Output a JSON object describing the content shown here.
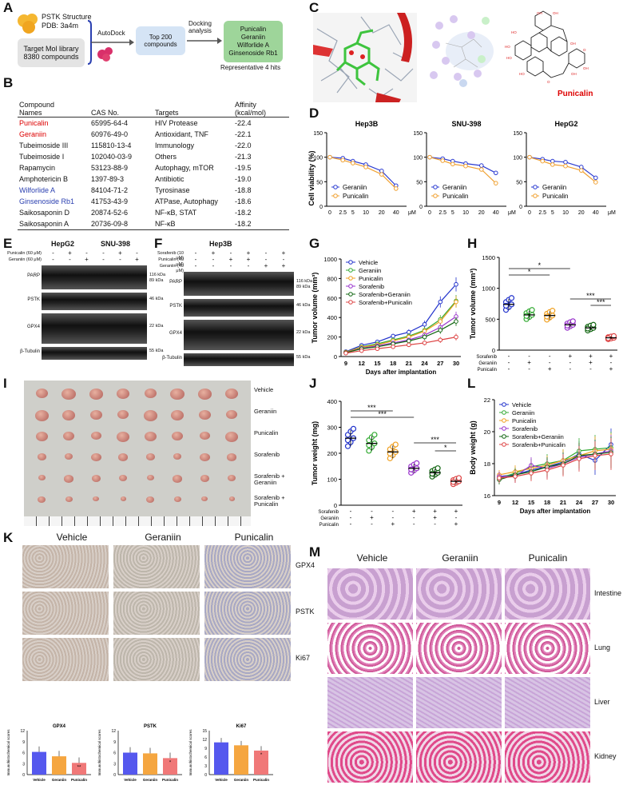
{
  "panels": {
    "A": "A",
    "B": "B",
    "C": "C",
    "D": "D",
    "E": "E",
    "F": "F",
    "G": "G",
    "H": "H",
    "I": "I",
    "J": "J",
    "K": "K",
    "L": "L",
    "M": "M"
  },
  "panelA": {
    "pstk_line1": "PSTK Structure",
    "pstk_line2": "PDB: 3a4m",
    "lib_line1": "Target Mol library",
    "lib_line2": "8380 compounds",
    "autodock": "AutoDock",
    "top_line1": "Top 200",
    "top_line2": "compounds",
    "dock_line1": "Docking",
    "dock_line2": "analysis",
    "hits": [
      "Punicalin",
      "Geraniin",
      "Wilforlide A",
      "Ginsenoside Rb1"
    ],
    "rep": "Representative 4 hits"
  },
  "panelB": {
    "headers": {
      "name1": "Compound",
      "name2": "Names",
      "cas": "CAS No.",
      "targets": "Targets",
      "aff1": "Affinity",
      "aff2": "(kcal/mol)"
    },
    "rows": [
      {
        "name": "Punicalin",
        "cas": "65995-64-4",
        "targets": "HIV Protease",
        "aff": "-22.4",
        "style": "hl-red"
      },
      {
        "name": "Geraniin",
        "cas": "60976-49-0",
        "targets": "Antioxidant, TNF",
        "aff": "-22.1",
        "style": "hl-red"
      },
      {
        "name": "Tubeimoside III",
        "cas": "115810-13-4",
        "targets": "Immunology",
        "aff": "-22.0",
        "style": ""
      },
      {
        "name": "Tubeimoside I",
        "cas": "102040-03-9",
        "targets": "Others",
        "aff": "-21.3",
        "style": ""
      },
      {
        "name": "Rapamycin",
        "cas": "53123-88-9",
        "targets": "Autophagy, mTOR",
        "aff": "-19.5",
        "style": ""
      },
      {
        "name": "Amphotericin B",
        "cas": "1397-89-3",
        "targets": "Antibiotic",
        "aff": "-19.0",
        "style": ""
      },
      {
        "name": "Wilforlide A",
        "cas": "84104-71-2",
        "targets": "Tyrosinase",
        "aff": "-18.8",
        "style": "hl-blue"
      },
      {
        "name": "Ginsenoside Rb1",
        "cas": "41753-43-9",
        "targets": "ATPase, Autophagy",
        "aff": "-18.6",
        "style": "hl-blue"
      },
      {
        "name": "Saikosaponin D",
        "cas": "20874-52-6",
        "targets": "NF-κB, STAT",
        "aff": "-18.2",
        "style": ""
      },
      {
        "name": "Saikosaponin A",
        "cas": "20736-09-8",
        "targets": "NF-κB",
        "aff": "-18.2",
        "style": ""
      }
    ]
  },
  "panelC": {
    "label": "Punicalin"
  },
  "panelD": {
    "ylabel": "Cell viability (%)",
    "unit": "μM",
    "legend": [
      "Geraniin",
      "Punicalin"
    ],
    "colors": {
      "geraniin": "#2b3bd1",
      "punicalin": "#f0a030"
    }
  },
  "panelE": {
    "title1": "HepG2",
    "title2": "SNU-398",
    "cond": [
      "Punicalin (60 μM)",
      "Geraniin (60 μM)"
    ],
    "signs": [
      [
        "-",
        "+",
        "-",
        "-",
        "+",
        "-"
      ],
      [
        "-",
        "-",
        "+",
        "-",
        "-",
        "+"
      ]
    ],
    "proteins": [
      "PARP",
      "PSTK",
      "GPX4",
      "β-Tubulin"
    ],
    "sizes": [
      "116 kDa\n89 kDa",
      "46 kDa",
      "22 kDa",
      "55 kDa"
    ]
  },
  "panelF": {
    "title": "Hep3B",
    "cond": [
      "Sorafenib (10 μM)",
      "Punicalin (40 μM)",
      "Geraniin (40 μM)"
    ],
    "signs": [
      [
        "-",
        "+",
        "-",
        "+",
        "-",
        "+"
      ],
      [
        "-",
        "-",
        "+",
        "+",
        "-",
        "-"
      ],
      [
        "-",
        "-",
        "-",
        "-",
        "+",
        "+"
      ]
    ],
    "proteins": [
      "PARP",
      "PSTK",
      "GPX4",
      "β-Tubulin"
    ],
    "sizes": [
      "116 kDa\n89 kDa",
      "46 kDa",
      "22 kDa",
      "55 kDa"
    ]
  },
  "panelG": {
    "ylabel": "Tumor volume (mm³)",
    "xlabel": "Days after implantation",
    "legend": [
      "Vehicle",
      "Geraniin",
      "Punicalin",
      "Sorafenib",
      "Sorafenib+Geraniin",
      "Sorafenib+Punicalin"
    ]
  },
  "panelH": {
    "ylabel": "Tumor volume (mm³)",
    "rowlabels": [
      "Sorafenib",
      "Geraniin",
      "Punicalin"
    ]
  },
  "panelI": {
    "rows": [
      "Vehicle",
      "Geraniin",
      "Punicalin",
      "Sorafenib",
      "Sorafenib +\nGeraniin",
      "Sorafenib +\nPunicalin"
    ]
  },
  "panelJ": {
    "ylabel": "Tumor weight (mg)",
    "rowlabels": [
      "Sorafenib",
      "Geraniin",
      "Punicalin"
    ]
  },
  "panelL": {
    "ylabel": "Body weight (g)",
    "xlabel": "Days after implantation",
    "legend": [
      "Vehicle",
      "Geraniin",
      "Punicalin",
      "Sorafenib",
      "Sorafenib+Geraniin",
      "Sorafenib+Punicalin"
    ]
  },
  "panelK": {
    "cols": [
      "Vehicle",
      "Geraniin",
      "Punicalin"
    ],
    "rows": [
      "GPX4",
      "PSTK",
      "Ki67"
    ],
    "ylabel": "Immunohistochemical scores"
  },
  "panelM": {
    "cols": [
      "Vehicle",
      "Geraniin",
      "Punicalin"
    ],
    "rows": [
      "Intestine",
      "Lung",
      "Liver",
      "Kidney"
    ]
  },
  "colors": {
    "vehicle": "#2233cc",
    "geraniin": "#33aa33",
    "punicalin": "#f0a020",
    "sorafenib": "#9933cc",
    "sor_ger": "#116611",
    "sor_pun": "#dd4444"
  },
  "chart_data": [
    {
      "panel": "D",
      "title": "Hep3B",
      "type": "line",
      "x": [
        0,
        2.5,
        5,
        10,
        20,
        40
      ],
      "xticks": [
        "0",
        "2.5",
        "5",
        "10",
        "20",
        "40"
      ],
      "ylim": [
        0,
        150
      ],
      "yticks": [
        0,
        50,
        100,
        150
      ],
      "series": [
        {
          "name": "Geraniin",
          "values": [
            100,
            98,
            92,
            85,
            72,
            42
          ]
        },
        {
          "name": "Punicalin",
          "values": [
            100,
            94,
            88,
            80,
            65,
            36
          ]
        }
      ]
    },
    {
      "panel": "D",
      "title": "SNU-398",
      "type": "line",
      "x": [
        0,
        2.5,
        5,
        10,
        20,
        40
      ],
      "xticks": [
        "0",
        "2.5",
        "5",
        "10",
        "20",
        "40"
      ],
      "ylim": [
        0,
        150
      ],
      "yticks": [
        0,
        50,
        100,
        150
      ],
      "series": [
        {
          "name": "Geraniin",
          "values": [
            100,
            97,
            92,
            87,
            83,
            68
          ]
        },
        {
          "name": "Punicalin",
          "values": [
            100,
            93,
            86,
            82,
            75,
            47
          ]
        }
      ]
    },
    {
      "panel": "D",
      "title": "HepG2",
      "type": "line",
      "x": [
        0,
        2.5,
        5,
        10,
        20,
        40
      ],
      "xticks": [
        "0",
        "2.5",
        "5",
        "10",
        "20",
        "40"
      ],
      "ylim": [
        0,
        150
      ],
      "yticks": [
        0,
        50,
        100,
        150
      ],
      "series": [
        {
          "name": "Geraniin",
          "values": [
            100,
            96,
            92,
            90,
            80,
            58
          ]
        },
        {
          "name": "Punicalin",
          "values": [
            100,
            92,
            85,
            82,
            73,
            49
          ]
        }
      ]
    },
    {
      "panel": "G",
      "type": "line",
      "x": [
        9,
        12,
        15,
        18,
        21,
        24,
        27,
        30
      ],
      "xticks": [
        "9",
        "12",
        "15",
        "18",
        "21",
        "24",
        "27",
        "30"
      ],
      "ylim": [
        0,
        1000
      ],
      "yticks": [
        0,
        200,
        400,
        600,
        800,
        1000
      ],
      "series": [
        {
          "name": "Vehicle",
          "values": [
            50,
            115,
            150,
            210,
            250,
            330,
            560,
            740
          ]
        },
        {
          "name": "Geraniin",
          "values": [
            45,
            100,
            130,
            170,
            210,
            270,
            380,
            570
          ]
        },
        {
          "name": "Punicalin",
          "values": [
            45,
            95,
            120,
            160,
            200,
            260,
            360,
            560
          ]
        },
        {
          "name": "Sorafenib",
          "values": [
            40,
            85,
            110,
            140,
            170,
            220,
            300,
            410
          ]
        },
        {
          "name": "Sorafenib+Geraniin",
          "values": [
            40,
            80,
            100,
            130,
            160,
            200,
            270,
            360
          ]
        },
        {
          "name": "Sorafenib+Punicalin",
          "values": [
            35,
            60,
            80,
            100,
            120,
            140,
            170,
            200
          ]
        }
      ]
    },
    {
      "panel": "H",
      "type": "scatter",
      "ylim": [
        0,
        1500
      ],
      "yticks": [
        0,
        500,
        1000,
        1500
      ],
      "categories": [
        "Vehicle",
        "Geraniin",
        "Punicalin",
        "Sorafenib",
        "Sorafenib+Geraniin",
        "Sorafenib+Punicalin"
      ],
      "values": [
        740,
        570,
        560,
        410,
        360,
        200
      ],
      "significance": [
        {
          "from": 0,
          "to": 3,
          "label": "*"
        },
        {
          "from": 0,
          "to": 2,
          "label": "*"
        },
        {
          "from": 3,
          "to": 5,
          "label": "***"
        },
        {
          "from": 4,
          "to": 5,
          "label": "***"
        }
      ]
    },
    {
      "panel": "J",
      "type": "scatter",
      "ylim": [
        0,
        400
      ],
      "yticks": [
        0,
        100,
        200,
        300,
        400
      ],
      "categories": [
        "Vehicle",
        "Geraniin",
        "Punicalin",
        "Sorafenib",
        "Sorafenib+Geraniin",
        "Sorafenib+Punicalin"
      ],
      "values": [
        258,
        238,
        205,
        142,
        125,
        92
      ],
      "significance": [
        {
          "from": 0,
          "to": 2,
          "label": "***"
        },
        {
          "from": 0,
          "to": 3,
          "label": "***"
        },
        {
          "from": 3,
          "to": 5,
          "label": "***"
        },
        {
          "from": 4,
          "to": 5,
          "label": "*"
        }
      ]
    },
    {
      "panel": "L",
      "type": "line",
      "x": [
        9,
        12,
        15,
        18,
        21,
        24,
        27,
        30
      ],
      "xticks": [
        "9",
        "12",
        "15",
        "18",
        "21",
        "24",
        "27",
        "30"
      ],
      "ylim": [
        16,
        22
      ],
      "yticks": [
        16,
        18,
        20,
        22
      ],
      "series": [
        {
          "name": "Vehicle",
          "values": [
            17.2,
            17.3,
            17.6,
            17.8,
            18.1,
            18.6,
            18.2,
            19.2
          ]
        },
        {
          "name": "Geraniin",
          "values": [
            17.1,
            17.4,
            17.8,
            18.0,
            18.2,
            18.8,
            18.9,
            19.0
          ]
        },
        {
          "name": "Punicalin",
          "values": [
            17.3,
            17.5,
            17.7,
            17.9,
            18.2,
            18.5,
            18.8,
            18.9
          ]
        },
        {
          "name": "Sorafenib",
          "values": [
            17.2,
            17.2,
            17.9,
            17.7,
            18.0,
            18.4,
            18.6,
            18.8
          ]
        },
        {
          "name": "Sorafenib+Geraniin",
          "values": [
            17.0,
            17.3,
            17.5,
            17.8,
            18.0,
            18.5,
            18.6,
            18.7
          ]
        },
        {
          "name": "Sorafenib+Punicalin",
          "values": [
            17.1,
            17.2,
            17.4,
            17.6,
            17.9,
            18.3,
            18.5,
            18.6
          ]
        }
      ]
    },
    {
      "panel": "K",
      "title": "GPX4",
      "type": "bar",
      "categories": [
        "Vehicle",
        "Geraniin",
        "Punicalin"
      ],
      "values": [
        6.2,
        5.0,
        3.2
      ],
      "ylim": [
        0,
        12
      ],
      "yticks": [
        0,
        3,
        6,
        9,
        12
      ],
      "labels": [
        "",
        "",
        "**"
      ]
    },
    {
      "panel": "K",
      "title": "PSTK",
      "type": "bar",
      "categories": [
        "Vehicle",
        "Geraniin",
        "Punicalin"
      ],
      "values": [
        6.0,
        5.8,
        4.5
      ],
      "ylim": [
        0,
        12
      ],
      "yticks": [
        0,
        3,
        6,
        9,
        12
      ],
      "labels": [
        "",
        "",
        "*"
      ]
    },
    {
      "panel": "K",
      "title": "Ki67",
      "type": "bar",
      "categories": [
        "Vehicle",
        "Geraniin",
        "Punicalin"
      ],
      "values": [
        11.0,
        10.0,
        8.2
      ],
      "ylim": [
        0,
        15
      ],
      "yticks": [
        0,
        3,
        6,
        9,
        12,
        15
      ],
      "labels": [
        "",
        "",
        "*"
      ]
    }
  ]
}
